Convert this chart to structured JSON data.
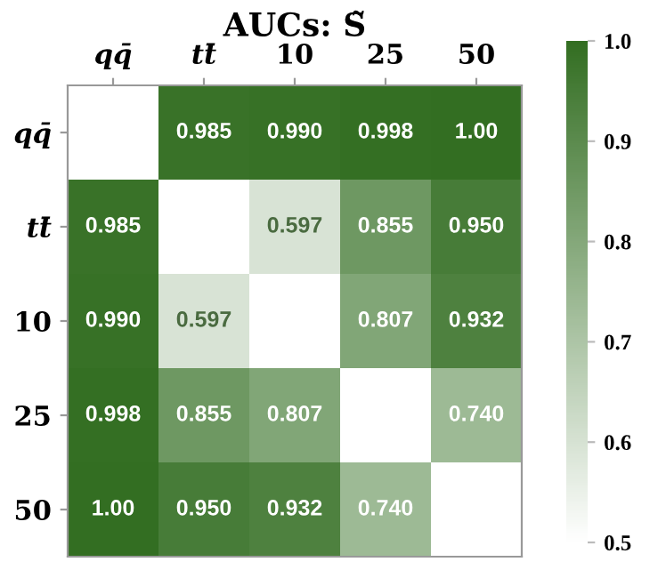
{
  "chart_data": {
    "type": "heatmap",
    "title": "AUCs: S̃",
    "categories": [
      "qq̄",
      "tt̄",
      "10",
      "25",
      "50"
    ],
    "y_categories": [
      "qq̄",
      "tt̄",
      "10",
      "25",
      "50"
    ],
    "cells": [
      [
        null,
        0.985,
        0.99,
        0.998,
        1.0
      ],
      [
        0.985,
        null,
        0.597,
        0.855,
        0.95
      ],
      [
        0.99,
        0.597,
        null,
        0.807,
        0.932
      ],
      [
        0.998,
        0.855,
        0.807,
        null,
        0.74
      ],
      [
        1.0,
        0.95,
        0.932,
        0.74,
        null
      ]
    ],
    "cell_labels": [
      [
        null,
        "0.985",
        "0.990",
        "0.998",
        "1.00"
      ],
      [
        "0.985",
        null,
        "0.597",
        "0.855",
        "0.950"
      ],
      [
        "0.990",
        "0.597",
        null,
        "0.807",
        "0.932"
      ],
      [
        "0.998",
        "0.855",
        "0.807",
        null,
        "0.740"
      ],
      [
        "1.00",
        "0.950",
        "0.932",
        "0.740",
        null
      ]
    ],
    "colors": [
      "#ffffff",
      "#336e22"
    ],
    "clim": [
      0.5,
      1.0
    ],
    "cticks": [
      0.5,
      0.6,
      0.7,
      0.8,
      0.9,
      {
        "value": 1.0,
        "label": "1.0"
      }
    ]
  }
}
